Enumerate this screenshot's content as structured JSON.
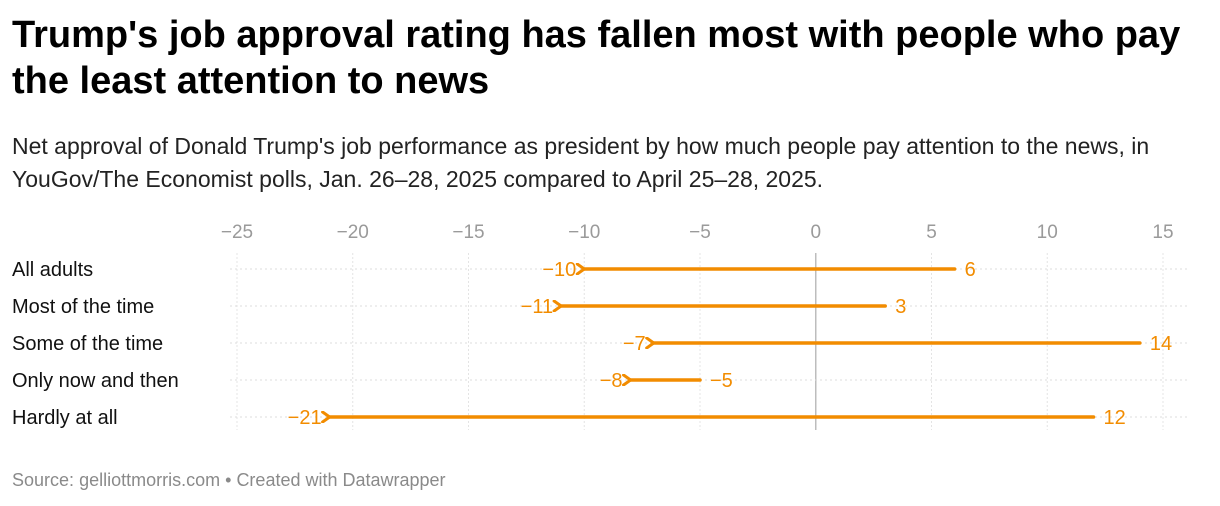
{
  "title": "Trump's job approval rating has fallen most with people who pay the least attention to news",
  "subtitle": "Net approval of Donald Trump's job performance as president by how much people pay attention to the news, in YouGov/The Economist polls, Jan. 26–28, 2025 compared to April 25–28, 2025.",
  "footer": {
    "source_label": "Source:",
    "source": "gelliottmorris.com",
    "separator": "•",
    "credit": "Created with Datawrapper"
  },
  "chart_data": {
    "type": "arrow-dot",
    "title": "Trump's job approval rating has fallen most with people who pay the least attention to news",
    "categories": [
      "All adults",
      "Most of the time",
      "Some of the time",
      "Only now and then",
      "Hardly at all"
    ],
    "series": [
      {
        "values": [
          6,
          3,
          14,
          -5,
          12
        ]
      },
      {
        "values": [
          -10,
          -11,
          -7,
          -8,
          -21
        ]
      }
    ],
    "value_labels": {
      "start": [
        "6",
        "3",
        "14",
        "−5",
        "12"
      ],
      "end": [
        "−10",
        "−11",
        "−7",
        "−8",
        "−21"
      ]
    },
    "xlim": [
      -25,
      15
    ],
    "xticks": [
      -25,
      -20,
      -15,
      -10,
      -5,
      0,
      5,
      10,
      15
    ],
    "xtick_labels": [
      "−25",
      "−20",
      "−15",
      "−10",
      "−5",
      "0",
      "5",
      "10",
      "15"
    ],
    "xlabel": "",
    "ylabel": "",
    "grid": true,
    "arrow_color": "#f28c00"
  }
}
